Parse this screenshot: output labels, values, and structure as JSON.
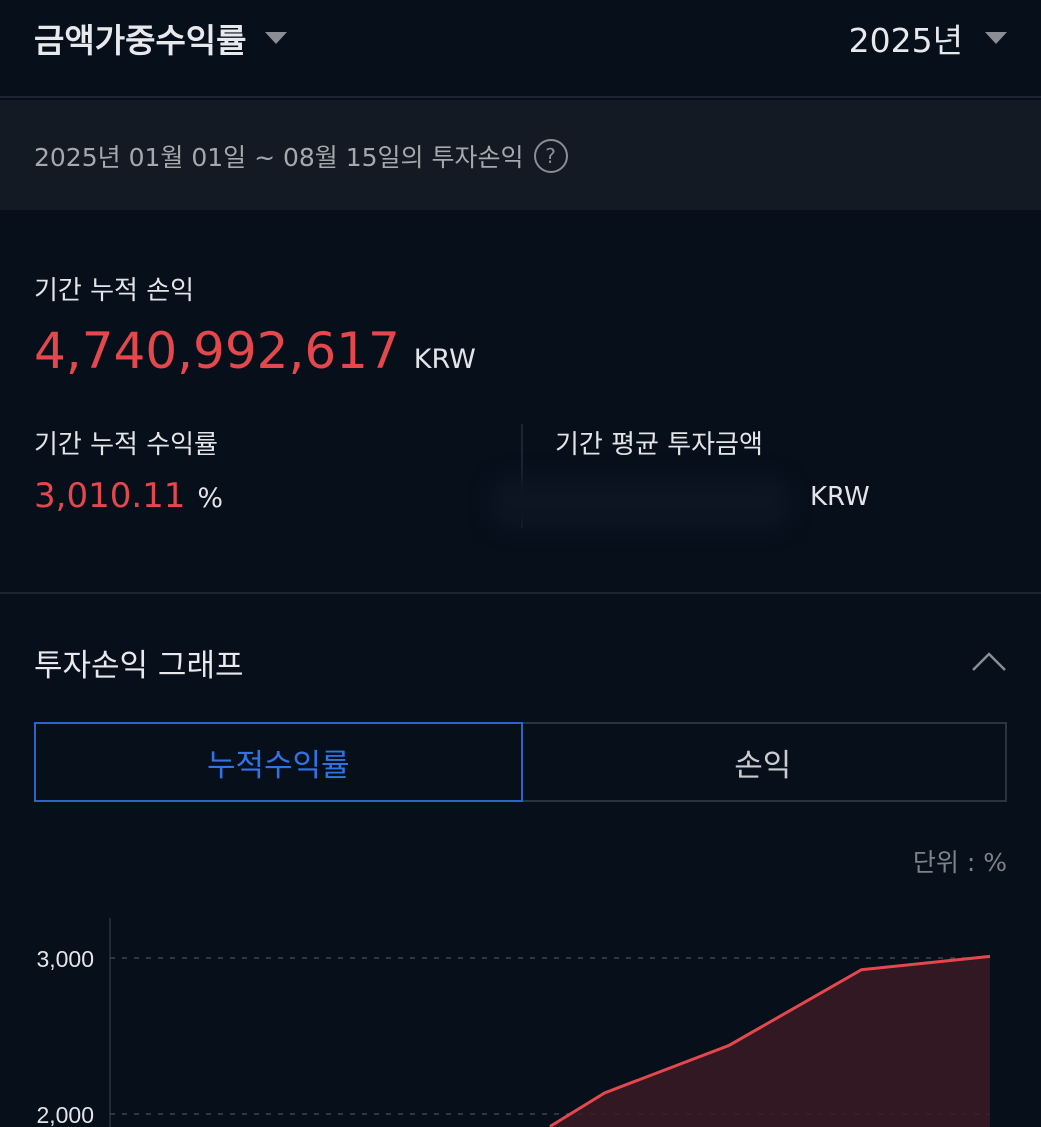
{
  "header": {
    "title": "금액가중수익률",
    "year": "2025년"
  },
  "period": {
    "text": "2025년 01월 01일 ~ 08월 15일의 투자손익",
    "help_icon": "?"
  },
  "summary": {
    "cum_pl_label": "기간 누적 손익",
    "cum_pl_value": "4,740,992,617",
    "cum_pl_unit": "KRW",
    "cum_rate_label": "기간 누적 수익률",
    "cum_rate_value": "3,010.11",
    "cum_rate_unit": "%",
    "avg_invest_label": "기간 평균 투자금액",
    "avg_invest_unit": "KRW"
  },
  "graph": {
    "title": "투자손익 그래프",
    "tabs": [
      {
        "label": "누적수익률",
        "active": true
      },
      {
        "label": "손익",
        "active": false
      }
    ],
    "unit_label": "단위 : %"
  },
  "colors": {
    "positive": "#e4484d",
    "accent": "#2f74e6",
    "background": "#070f1b"
  },
  "chart_data": {
    "type": "area",
    "ylabel": "",
    "yticks": [
      "3,000",
      "2,000"
    ],
    "ytick_values": [
      3000,
      2000
    ],
    "grid": true,
    "xlim": [
      "2025-01-01",
      "2025-08-15"
    ],
    "series": [
      {
        "x": [
          "2025-04-24",
          "2025-05-08",
          "2025-06-09",
          "2025-07-13",
          "2025-08-15"
        ],
        "values": [
          1920,
          2135,
          2440,
          2925,
          3010.11
        ]
      }
    ]
  }
}
